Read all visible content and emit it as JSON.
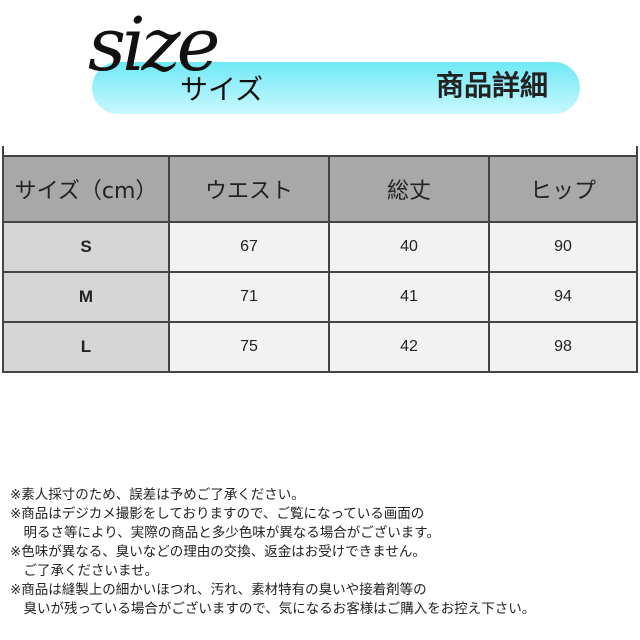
{
  "header": {
    "logo_text": "size",
    "logo_sub": "サイズ",
    "title": "商品詳細",
    "banner_color": "#8ef0f9"
  },
  "table": {
    "columns": [
      "サイズ（cm）",
      "ウエスト",
      "総丈",
      "ヒップ"
    ],
    "rows": [
      [
        "S",
        "67",
        "40",
        "90"
      ],
      [
        "M",
        "71",
        "41",
        "94"
      ],
      [
        "L",
        "75",
        "42",
        "98"
      ]
    ]
  },
  "notes": [
    "※素人採寸のため、誤差は予めご了承ください。",
    "※商品はデジカメ撮影をしておりますので、ご覧になっている画面の",
    "　明るさ等により、実際の商品と多少色味が異なる場合がございます。",
    "※色味が異なる、臭いなどの理由の交換、返金はお受けできません。",
    "　ご了承くださいませ。",
    "※商品は縫製上の細かいほつれ、汚れ、素材特有の臭いや接着剤等の",
    "　臭いが残っている場合がございますので、気になるお客様はご購入をお控え下さい。"
  ]
}
